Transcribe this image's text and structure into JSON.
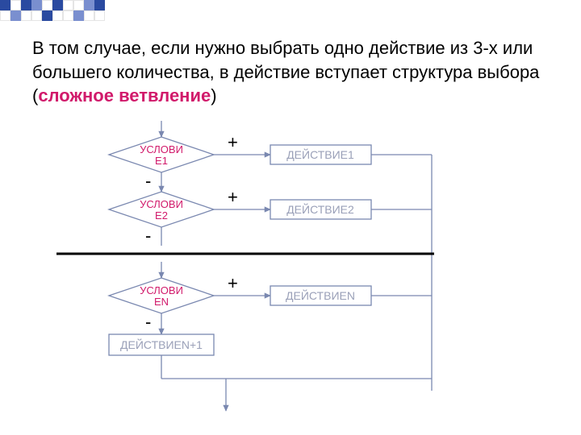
{
  "decoration": {
    "squares": [
      "#2a4aa0",
      "#ffffff",
      "#2a4aa0",
      "#7a8fcf",
      "#ffffff",
      "#2a4aa0",
      "#ffffff",
      "#ffffff",
      "#7a8fcf",
      "#2a4aa0"
    ],
    "squares2": [
      "#ffffff",
      "#7a8fcf",
      "#ffffff",
      "#ffffff",
      "#2a4aa0",
      "#ffffff",
      "#ffffff",
      "#7a8fcf",
      "#ffffff",
      "#ffffff"
    ],
    "border": "#d0d0d0"
  },
  "caption": {
    "pre": "В том случае, если нужно выбрать одно действие из 3-х или большего количества, в действие вступает структура выбора (",
    "hl": "сложное ветвление",
    "post": ")",
    "hl_color": "#d11a6b"
  },
  "diagram": {
    "cond1": {
      "l1": "УСЛОВИ",
      "l2": "Е1"
    },
    "cond2": {
      "l1": "УСЛОВИ",
      "l2": "Е2"
    },
    "condN": {
      "l1": "УСЛОВИ",
      "l2": "ЕN"
    },
    "act1": "ДЕЙСТВИЕ1",
    "act2": "ДЕЙСТВИЕ2",
    "actN": "ДЕЙСТВИЕN",
    "actN1": "ДЕЙСТВИЕN+1",
    "plus": "+",
    "minus": "-",
    "stroke": "#7a88b0",
    "thin": 1.3,
    "sep_color": "#000000",
    "label_color": "#d11a6b",
    "rect_text": "#9aa0b8"
  }
}
